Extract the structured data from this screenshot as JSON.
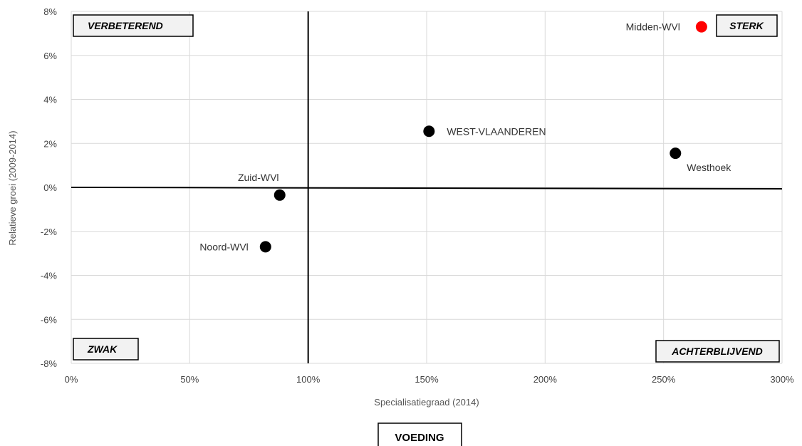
{
  "chart_data": {
    "type": "scatter",
    "title": "",
    "xlabel": "Specialisatiegraad (2014)",
    "ylabel": "Relatieve groei (2009-2014)",
    "xlim": [
      0,
      300
    ],
    "ylim": [
      -8,
      8
    ],
    "x_ticks": [
      "0%",
      "50%",
      "100%",
      "150%",
      "200%",
      "250%",
      "300%"
    ],
    "y_ticks": [
      "8%",
      "6%",
      "4%",
      "2%",
      "0%",
      "-2%",
      "-4%",
      "-6%",
      "-8%"
    ],
    "grid": true,
    "reference_lines": {
      "x": 100,
      "y": 0
    },
    "points": [
      {
        "label": "Midden-WVl",
        "x": 266,
        "y": 7.3,
        "color": "#ff0000"
      },
      {
        "label": "WEST-VLAANDEREN",
        "x": 151,
        "y": 2.55,
        "color": "#000000"
      },
      {
        "label": "Westhoek",
        "x": 255,
        "y": 1.55,
        "color": "#000000"
      },
      {
        "label": "Zuid-WVl",
        "x": 88,
        "y": -0.35,
        "color": "#000000"
      },
      {
        "label": "Noord-WVl",
        "x": 82,
        "y": -2.7,
        "color": "#000000"
      }
    ],
    "quadrant_labels": [
      "VERBETEREND",
      "STERK",
      "ZWAK",
      "ACHTERBLIJVEND"
    ],
    "bottom_label": "VOEDING"
  }
}
